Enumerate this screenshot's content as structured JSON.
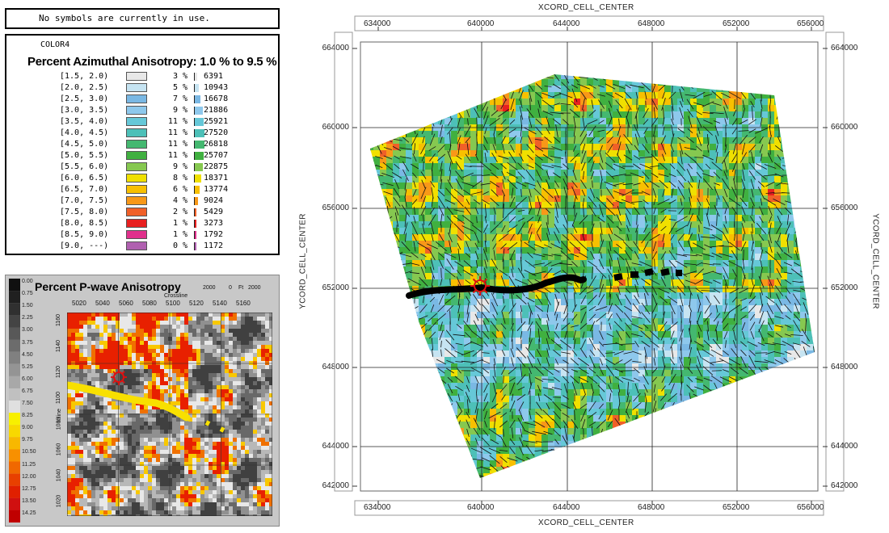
{
  "status_message": "No symbols are currently in use.",
  "legend": {
    "colormap_name": "COLOR4",
    "title": "Percent Azimuthal Anisotropy: 1.0 % to 9.5 %",
    "rows": [
      {
        "range": "[1.5, 2.0)",
        "color": "#e8e8e8",
        "percent": "3 %",
        "count": "6391"
      },
      {
        "range": "[2.0, 2.5)",
        "color": "#c6e4f2",
        "percent": "5 %",
        "count": "10943"
      },
      {
        "range": "[2.5, 3.0)",
        "color": "#7ab8e4",
        "percent": "7 %",
        "count": "16678"
      },
      {
        "range": "[3.0, 3.5)",
        "color": "#8ec8ec",
        "percent": "9 %",
        "count": "21886"
      },
      {
        "range": "[3.5, 4.0)",
        "color": "#66c8d8",
        "percent": "11 %",
        "count": "25921"
      },
      {
        "range": "[4.0, 4.5)",
        "color": "#4dc0b8",
        "percent": "11 %",
        "count": "27520"
      },
      {
        "range": "[4.5, 5.0)",
        "color": "#44b870",
        "percent": "11 %",
        "count": "26818"
      },
      {
        "range": "[5.0, 5.5)",
        "color": "#40b040",
        "percent": "11 %",
        "count": "25707"
      },
      {
        "range": "[5.5, 6.0)",
        "color": "#86c850",
        "percent": "9 %",
        "count": "22875"
      },
      {
        "range": "[6.0, 6.5)",
        "color": "#f0e000",
        "percent": "8 %",
        "count": "18371"
      },
      {
        "range": "[6.5, 7.0)",
        "color": "#f8c000",
        "percent": "6 %",
        "count": "13774"
      },
      {
        "range": "[7.0, 7.5)",
        "color": "#f89818",
        "percent": "4 %",
        "count": "9024"
      },
      {
        "range": "[7.5, 8.0)",
        "color": "#f06028",
        "percent": "2 %",
        "count": "5429"
      },
      {
        "range": "[8.0, 8.5)",
        "color": "#e82020",
        "percent": "1 %",
        "count": "3273"
      },
      {
        "range": "[8.5, 9.0)",
        "color": "#e0308c",
        "percent": "1 %",
        "count": "1792"
      },
      {
        "range": "[9.0, ---)",
        "color": "#b060b0",
        "percent": "0 %",
        "count": "1172"
      }
    ]
  },
  "pwave": {
    "title": "Percent P-wave Anisotropy",
    "scale_labels": [
      "2000",
      "0",
      "Ft",
      "2000"
    ],
    "crossline_label": "Crossline",
    "inline_label": "Inline",
    "crossline_ticks": [
      "5020",
      "5040",
      "5060",
      "5080",
      "5100",
      "5120",
      "5140",
      "5160"
    ],
    "inline_ticks": [
      "1160",
      "1140",
      "1120",
      "1100",
      "1080",
      "1060",
      "1040",
      "1020"
    ],
    "colorbar_labels": [
      "0.00",
      "0.75",
      "1.50",
      "2.25",
      "3.00",
      "3.75",
      "4.50",
      "5.25",
      "6.00",
      "6.75",
      "7.50",
      "8.25",
      "9.00",
      "9.75",
      "10.50",
      "11.25",
      "12.00",
      "12.75",
      "13.50",
      "14.25"
    ]
  },
  "main_map": {
    "x_axis_title": "XCORD_CELL_CENTER",
    "y_axis_title": "YCORD_CELL_CENTER",
    "x_ticks": [
      "634000",
      "640000",
      "644000",
      "648000",
      "652000",
      "656000"
    ],
    "y_ticks": [
      "664000",
      "660000",
      "656000",
      "652000",
      "648000",
      "644000",
      "642000"
    ]
  }
}
